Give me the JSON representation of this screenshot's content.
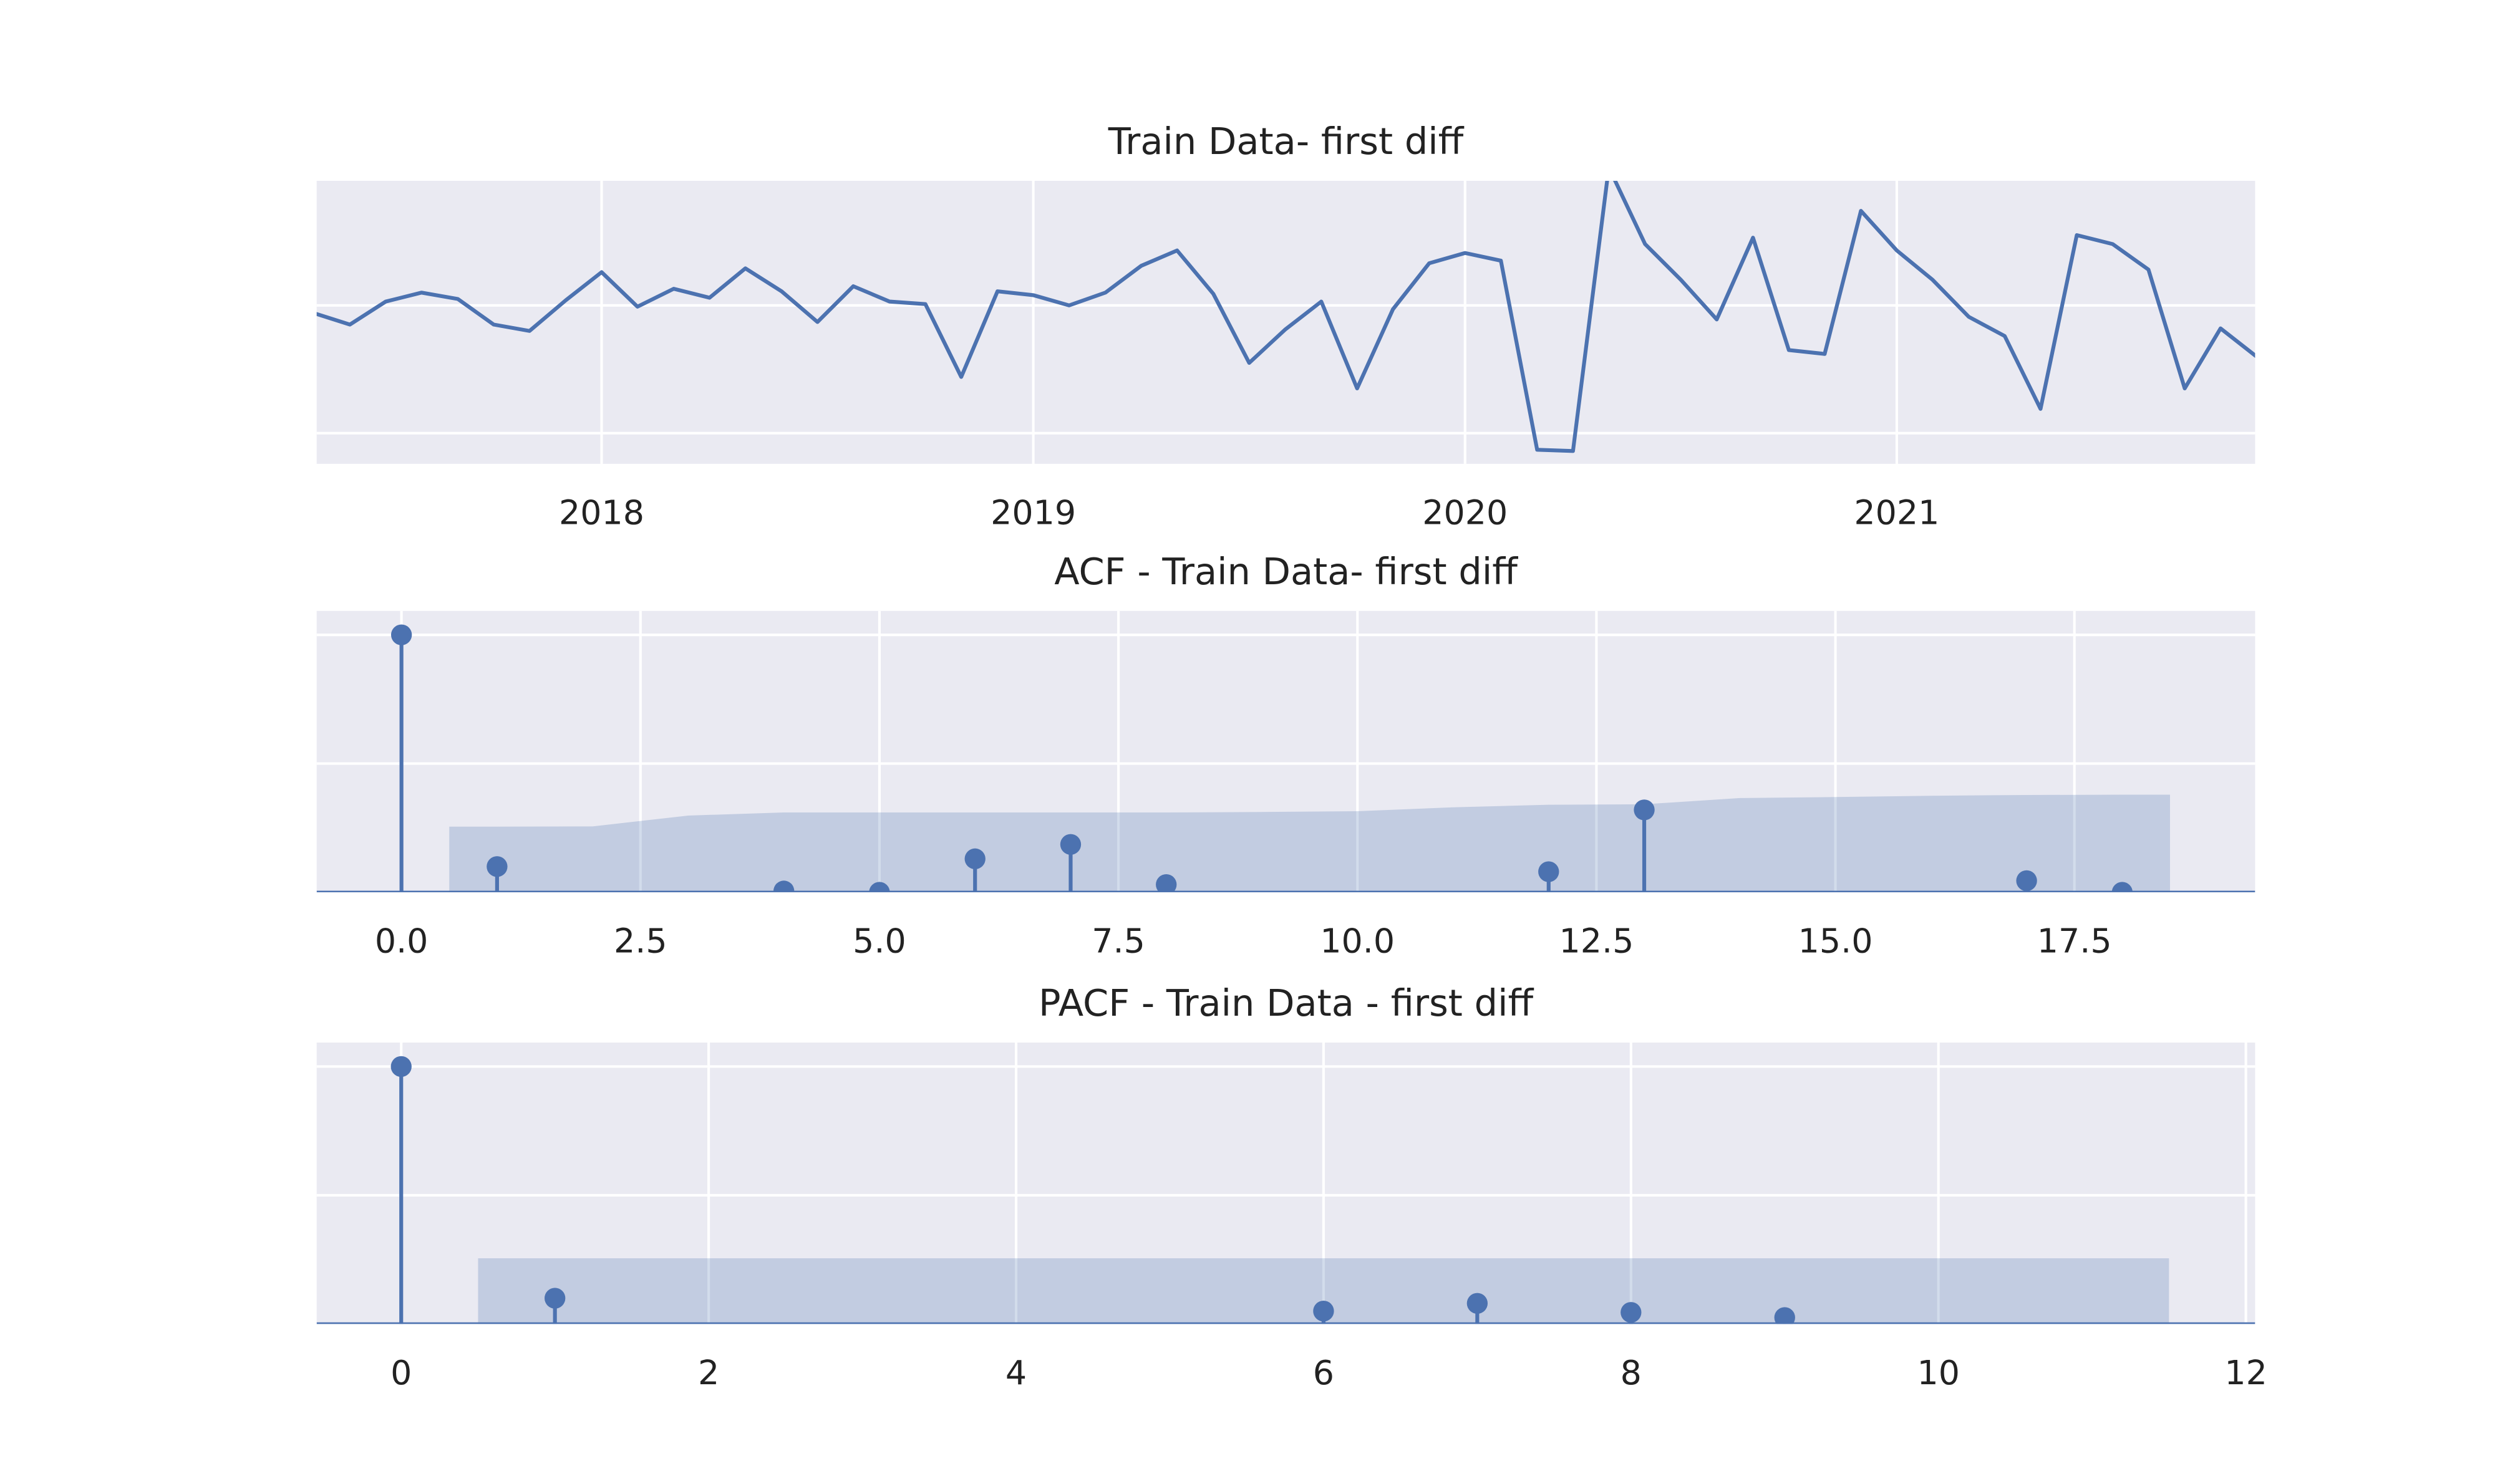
{
  "chart_data": [
    {
      "type": "line",
      "title": "Train Data- first diff",
      "color": "#4c72b0",
      "grid": true,
      "show_ytick_labels": false,
      "x": [
        2017.333,
        2017.417,
        2017.5,
        2017.583,
        2017.667,
        2017.75,
        2017.833,
        2017.917,
        2018.0,
        2018.083,
        2018.167,
        2018.25,
        2018.333,
        2018.417,
        2018.5,
        2018.583,
        2018.667,
        2018.75,
        2018.833,
        2018.917,
        2019.0,
        2019.083,
        2019.167,
        2019.25,
        2019.333,
        2019.417,
        2019.5,
        2019.583,
        2019.667,
        2019.75,
        2019.833,
        2019.917,
        2020.0,
        2020.083,
        2020.167,
        2020.25,
        2020.333,
        2020.417,
        2020.5,
        2020.583,
        2020.667,
        2020.75,
        2020.833,
        2020.917,
        2021.0,
        2021.083,
        2021.167,
        2021.25,
        2021.333,
        2021.417,
        2021.5,
        2021.583,
        2021.667,
        2021.75,
        2021.833
      ],
      "values": [
        -0.06,
        -0.15,
        0.03,
        0.1,
        0.05,
        -0.15,
        -0.2,
        0.04,
        0.26,
        -0.01,
        0.13,
        0.06,
        0.29,
        0.11,
        -0.13,
        0.15,
        0.03,
        0.01,
        -0.56,
        0.11,
        0.08,
        0,
        0.1,
        0.31,
        0.43,
        0.09,
        -0.45,
        -0.19,
        0.03,
        -0.65,
        -0.03,
        0.33,
        0.41,
        0.35,
        -1.13,
        -1.14,
        1.08,
        0.48,
        0.2,
        -0.11,
        0.53,
        -0.35,
        -0.38,
        0.74,
        0.43,
        0.2,
        -0.09,
        -0.24,
        -0.81,
        0.55,
        0.48,
        0.28,
        -0.65,
        -0.18,
        -0.4
      ],
      "xlim": [
        2017.34,
        2021.83
      ],
      "xticks": [
        2018,
        2019,
        2020,
        2021
      ],
      "ylim": [
        -1.24,
        0.975
      ],
      "yticks": [
        -1,
        0
      ]
    },
    {
      "type": "stem",
      "title": "ACF - Train Data- first diff",
      "color": "#4c72b0",
      "grid": true,
      "show_ytick_labels": false,
      "x": [
        0,
        1,
        4,
        5,
        6,
        7,
        8,
        12,
        13,
        17,
        18
      ],
      "values": [
        1.0,
        0.1,
        0.005,
        0.0,
        0.13,
        0.186,
        0.03,
        0.08,
        0.32,
        0.045,
        0.0
      ],
      "conf_band": {
        "x": [
          0.5,
          1,
          2,
          3,
          4,
          5,
          6,
          7,
          8,
          9,
          10,
          11,
          12,
          13,
          14,
          15,
          16,
          17,
          18,
          18.5
        ],
        "upper": [
          0.255,
          0.255,
          0.256,
          0.298,
          0.31,
          0.31,
          0.31,
          0.31,
          0.31,
          0.312,
          0.315,
          0.33,
          0.34,
          0.342,
          0.366,
          0.37,
          0.375,
          0.378,
          0.379,
          0.379
        ]
      },
      "xlim": [
        -0.887,
        19.39
      ],
      "xticks": [
        {
          "value": 0,
          "label": "0.0"
        },
        {
          "value": 2.5,
          "label": "2.5"
        },
        {
          "value": 5,
          "label": "5.0"
        },
        {
          "value": 7.5,
          "label": "7.5"
        },
        {
          "value": 10,
          "label": "10.0"
        },
        {
          "value": 12.5,
          "label": "12.5"
        },
        {
          "value": 15,
          "label": "15.0"
        },
        {
          "value": 17.5,
          "label": "17.5"
        }
      ],
      "ylim": [
        0,
        1.093
      ],
      "yticks": [
        0,
        0.5,
        1
      ]
    },
    {
      "type": "stem",
      "title": "PACF - Train Data - first diff",
      "color": "#4c72b0",
      "grid": true,
      "show_ytick_labels": false,
      "x": [
        0,
        1,
        6,
        7,
        8,
        9
      ],
      "values": [
        1.0,
        0.1,
        0.05,
        0.08,
        0.045,
        0.025
      ],
      "conf_band": {
        "x": [
          0.5,
          11.5
        ],
        "upper": [
          0.255,
          0.255
        ]
      },
      "xlim": [
        -0.55,
        12.06
      ],
      "xticks": [
        0,
        2,
        4,
        6,
        8,
        10,
        12
      ],
      "ylim": [
        0,
        1.093
      ],
      "yticks": [
        0,
        0.5,
        1
      ]
    }
  ]
}
